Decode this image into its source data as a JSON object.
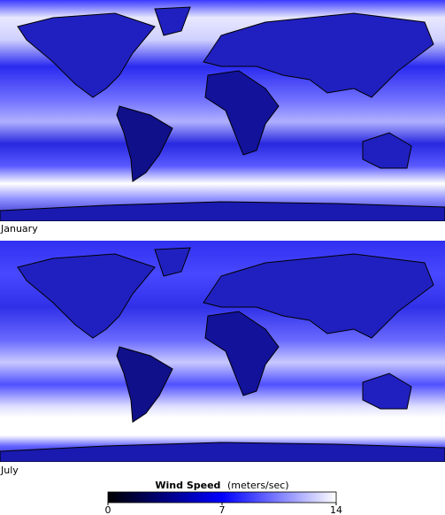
{
  "panels": [
    {
      "label": "January"
    },
    {
      "label": "July"
    }
  ],
  "legend": {
    "title": "Wind Speed",
    "units": "(meters/sec)",
    "range": [
      0,
      14
    ],
    "ticks": [
      0,
      7,
      14
    ],
    "colors": [
      "#000000",
      "#0000ff",
      "#ffffff"
    ]
  }
}
